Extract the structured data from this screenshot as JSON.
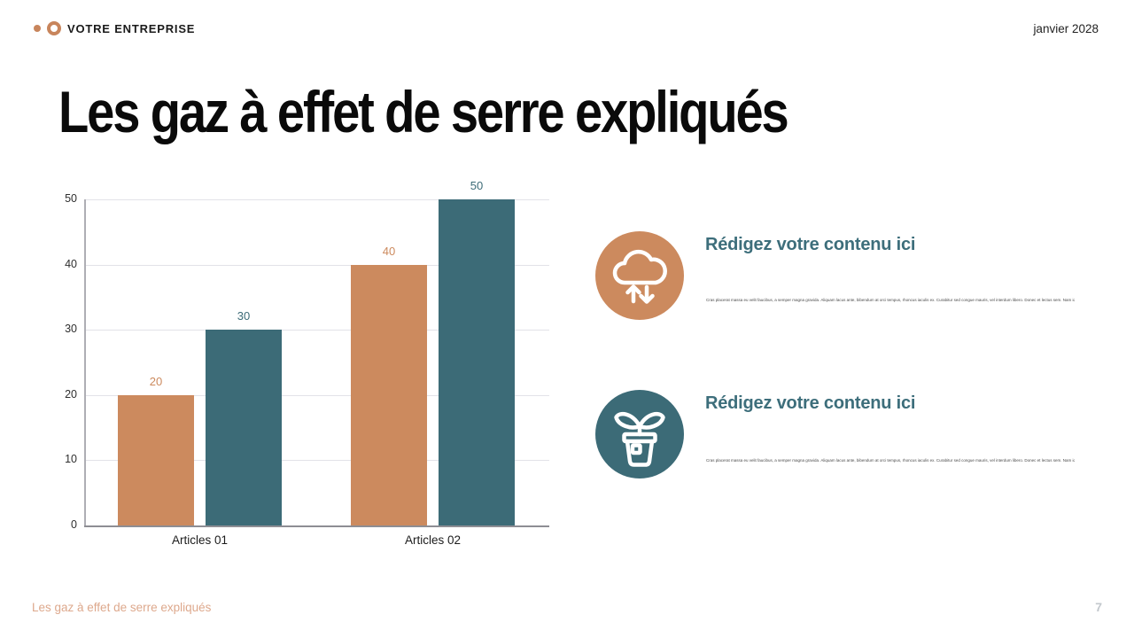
{
  "header": {
    "brand": "VOTRE ENTREPRISE",
    "date": "janvier 2028"
  },
  "title": "Les gaz à effet de serre expliqués",
  "chart_data": {
    "type": "bar",
    "title": "",
    "xlabel": "",
    "ylabel": "",
    "categories": [
      "Articles 01",
      "Articles 02"
    ],
    "series": [
      {
        "name": "series-orange",
        "color": "#CC8A5E",
        "values": [
          20,
          40
        ]
      },
      {
        "name": "series-teal",
        "color": "#3C6B77",
        "values": [
          30,
          50
        ]
      }
    ],
    "ylim": [
      0,
      50
    ],
    "yticks": [
      0,
      10,
      20,
      30,
      40,
      50
    ],
    "grid": true,
    "legend_position": "none",
    "data_labels": true
  },
  "content_items": [
    {
      "icon": "cloud-transfer-icon",
      "icon_color": "#CC8A5E",
      "heading": "Rédigez votre contenu ici",
      "body": "Cras placerat massa eu velit faucibus, a semper magna gravida. Aliquam lacus ante, bibendum at orci tempus, rhoncus iaculis ex. Curabitur sed congue mauris, vel interdum libero. Donec et lectus sem. Nam id vulputate nibh"
    },
    {
      "icon": "potted-plant-icon",
      "icon_color": "#3C6B77",
      "heading": "Rédigez votre contenu ici",
      "body": "Cras placerat massa eu velit faucibus, a semper magna gravida. Aliquam lacus ante, bibendum at orci tempus, rhoncus iaculis ex. Curabitur sed congue mauris, vel interdum libero. Donec et lectus sem. Nam id vulputate nibh"
    }
  ],
  "footer": {
    "slide_title": "Les gaz à effet de serre expliqués",
    "page_number": "7"
  },
  "colors": {
    "accent_orange": "#CC8A5E",
    "accent_teal": "#3C6B77",
    "heading_teal": "#3D6E7B",
    "footer_tan": "#DDA88C",
    "page_number_gray": "#C3C8CD"
  }
}
